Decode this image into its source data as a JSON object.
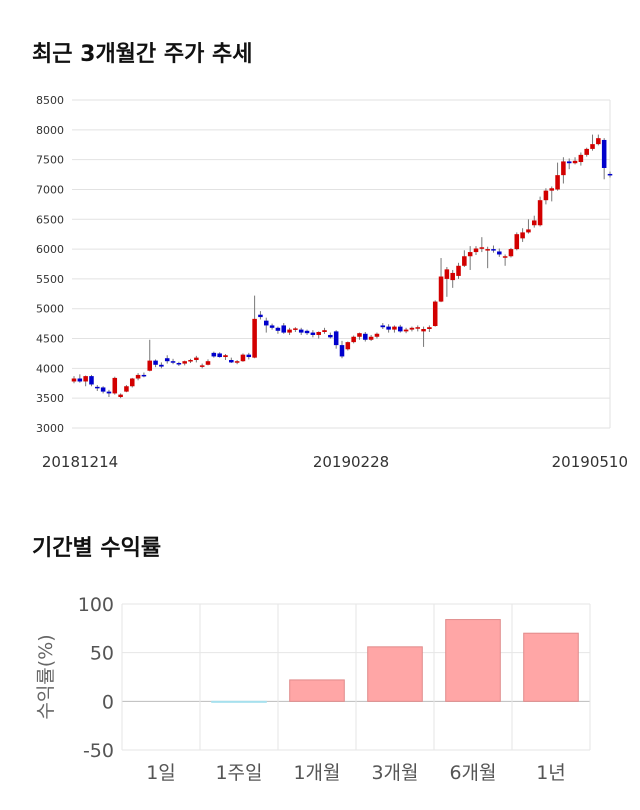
{
  "sections": {
    "price_title": "최근 3개월간 주가 추세",
    "return_title": "기간별 수익률"
  },
  "chart_data": [
    {
      "type": "candlestick",
      "title": "최근 3개월간 주가 추세",
      "ylim": [
        3000,
        8500
      ],
      "yticks": [
        3000,
        3500,
        4000,
        4500,
        5000,
        5500,
        6000,
        6500,
        7000,
        7500,
        8000,
        8500
      ],
      "xtick_labels": [
        "20181214",
        "20190228",
        "20190510"
      ],
      "grid": true,
      "up_color": "#d20000",
      "down_color": "#0000cc",
      "candles": [
        [
          3780,
          3870,
          3750,
          3830
        ],
        [
          3830,
          3900,
          3760,
          3780
        ],
        [
          3780,
          3880,
          3700,
          3870
        ],
        [
          3870,
          3890,
          3700,
          3730
        ],
        [
          3690,
          3720,
          3620,
          3680
        ],
        [
          3680,
          3700,
          3580,
          3610
        ],
        [
          3610,
          3640,
          3520,
          3580
        ],
        [
          3580,
          3860,
          3560,
          3840
        ],
        [
          3520,
          3580,
          3500,
          3560
        ],
        [
          3610,
          3720,
          3600,
          3700
        ],
        [
          3700,
          3840,
          3680,
          3830
        ],
        [
          3830,
          3920,
          3800,
          3890
        ],
        [
          3890,
          3930,
          3850,
          3870
        ],
        [
          3960,
          4480,
          3950,
          4130
        ],
        [
          4130,
          4150,
          4020,
          4060
        ],
        [
          4060,
          4100,
          4000,
          4030
        ],
        [
          4170,
          4220,
          4080,
          4120
        ],
        [
          4120,
          4160,
          4070,
          4110
        ],
        [
          4090,
          4110,
          4040,
          4080
        ],
        [
          4080,
          4130,
          4050,
          4120
        ],
        [
          4120,
          4160,
          4090,
          4140
        ],
        [
          4140,
          4210,
          4100,
          4180
        ],
        [
          4030,
          4080,
          4000,
          4050
        ],
        [
          4060,
          4150,
          4050,
          4120
        ],
        [
          4260,
          4280,
          4180,
          4200
        ],
        [
          4250,
          4270,
          4180,
          4190
        ],
        [
          4190,
          4240,
          4140,
          4220
        ],
        [
          4140,
          4180,
          4090,
          4100
        ],
        [
          4100,
          4140,
          4070,
          4120
        ],
        [
          4120,
          4250,
          4110,
          4230
        ],
        [
          4230,
          4260,
          4150,
          4190
        ],
        [
          4180,
          5220,
          4170,
          4830
        ],
        [
          4900,
          4960,
          4820,
          4860
        ],
        [
          4800,
          4850,
          4600,
          4720
        ],
        [
          4720,
          4750,
          4650,
          4680
        ],
        [
          4680,
          4700,
          4580,
          4630
        ],
        [
          4720,
          4760,
          4580,
          4600
        ],
        [
          4600,
          4680,
          4560,
          4650
        ],
        [
          4650,
          4690,
          4610,
          4670
        ],
        [
          4650,
          4680,
          4560,
          4600
        ],
        [
          4630,
          4650,
          4560,
          4590
        ],
        [
          4600,
          4640,
          4520,
          4560
        ],
        [
          4560,
          4620,
          4500,
          4610
        ],
        [
          4610,
          4680,
          4580,
          4640
        ],
        [
          4560,
          4600,
          4500,
          4520
        ],
        [
          4620,
          4640,
          4330,
          4390
        ],
        [
          4390,
          4460,
          4170,
          4200
        ],
        [
          4320,
          4450,
          4300,
          4440
        ],
        [
          4440,
          4550,
          4420,
          4530
        ],
        [
          4530,
          4600,
          4480,
          4590
        ],
        [
          4580,
          4610,
          4450,
          4480
        ],
        [
          4480,
          4560,
          4460,
          4530
        ],
        [
          4530,
          4600,
          4500,
          4580
        ],
        [
          4720,
          4760,
          4660,
          4690
        ],
        [
          4700,
          4740,
          4600,
          4650
        ],
        [
          4650,
          4720,
          4600,
          4700
        ],
        [
          4700,
          4730,
          4600,
          4620
        ],
        [
          4620,
          4680,
          4590,
          4650
        ],
        [
          4650,
          4700,
          4620,
          4680
        ],
        [
          4680,
          4720,
          4620,
          4690
        ],
        [
          4620,
          4700,
          4360,
          4660
        ],
        [
          4660,
          4720,
          4610,
          4690
        ],
        [
          4710,
          5140,
          4700,
          5120
        ],
        [
          5120,
          5850,
          5110,
          5540
        ],
        [
          5500,
          5700,
          5200,
          5660
        ],
        [
          5480,
          5650,
          5350,
          5600
        ],
        [
          5550,
          5770,
          5500,
          5720
        ],
        [
          5720,
          5980,
          5700,
          5880
        ],
        [
          5880,
          6050,
          5650,
          5950
        ],
        [
          5950,
          6050,
          5900,
          6010
        ],
        [
          6010,
          6200,
          5950,
          6030
        ],
        [
          5990,
          6040,
          5680,
          6000
        ],
        [
          6000,
          6060,
          5940,
          5990
        ],
        [
          5960,
          6010,
          5870,
          5910
        ],
        [
          5870,
          5910,
          5720,
          5880
        ],
        [
          5880,
          6020,
          5860,
          6000
        ],
        [
          6000,
          6280,
          5980,
          6250
        ],
        [
          6180,
          6350,
          6120,
          6280
        ],
        [
          6280,
          6500,
          6260,
          6330
        ],
        [
          6400,
          6560,
          6360,
          6480
        ],
        [
          6400,
          6880,
          6380,
          6820
        ],
        [
          6820,
          7020,
          6750,
          6980
        ],
        [
          6980,
          7050,
          6800,
          7020
        ],
        [
          7000,
          7450,
          6980,
          7240
        ],
        [
          7240,
          7540,
          7100,
          7470
        ],
        [
          7470,
          7520,
          7340,
          7440
        ],
        [
          7440,
          7540,
          7420,
          7480
        ],
        [
          7460,
          7620,
          7400,
          7580
        ],
        [
          7580,
          7700,
          7550,
          7680
        ],
        [
          7680,
          7920,
          7650,
          7760
        ],
        [
          7760,
          7920,
          7740,
          7860
        ],
        [
          7830,
          7860,
          7170,
          7360
        ],
        [
          7260,
          7300,
          7200,
          7250
        ]
      ]
    },
    {
      "type": "bar",
      "title": "기간별 수익률",
      "ylabel": "수익률(%)",
      "ylim": [
        -50,
        100
      ],
      "yticks": [
        -50,
        0,
        50,
        100
      ],
      "categories": [
        "1일",
        "1주일",
        "1개월",
        "3개월",
        "6개월",
        "1년"
      ],
      "values": [
        0,
        -1,
        22,
        56,
        84,
        70
      ],
      "colors": {
        "positive": "#ffa6a6",
        "positive_edge": "#e08a8a",
        "negative": "#a6e0ee"
      },
      "grid": true
    }
  ]
}
